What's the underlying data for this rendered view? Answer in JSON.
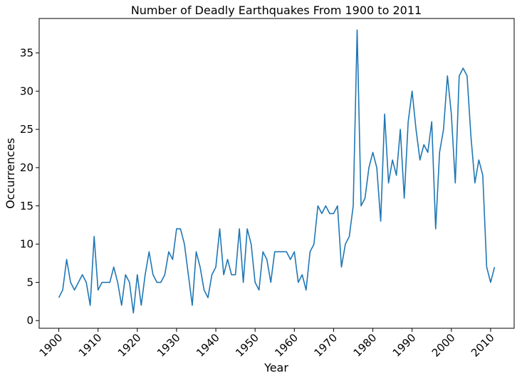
{
  "chart_data": {
    "type": "line",
    "title": "Number of Deadly Earthquakes From 1900 to 2011",
    "xlabel": "Year",
    "ylabel": "Occurrences",
    "xlim": [
      1895,
      2016
    ],
    "ylim": [
      -1,
      39.5
    ],
    "x_ticks": [
      1900,
      1910,
      1920,
      1930,
      1940,
      1950,
      1960,
      1970,
      1980,
      1990,
      2000,
      2010
    ],
    "y_ticks": [
      0,
      5,
      10,
      15,
      20,
      25,
      30,
      35
    ],
    "grid": false,
    "color": "#1f77b4",
    "x": [
      1900,
      1901,
      1902,
      1903,
      1904,
      1905,
      1906,
      1907,
      1908,
      1909,
      1910,
      1911,
      1912,
      1913,
      1914,
      1915,
      1916,
      1917,
      1918,
      1919,
      1920,
      1921,
      1922,
      1923,
      1924,
      1925,
      1926,
      1927,
      1928,
      1929,
      1930,
      1931,
      1932,
      1933,
      1934,
      1935,
      1936,
      1937,
      1938,
      1939,
      1940,
      1941,
      1942,
      1943,
      1944,
      1945,
      1946,
      1947,
      1948,
      1949,
      1950,
      1951,
      1952,
      1953,
      1954,
      1955,
      1956,
      1957,
      1958,
      1959,
      1960,
      1961,
      1962,
      1963,
      1964,
      1965,
      1966,
      1967,
      1968,
      1969,
      1970,
      1971,
      1972,
      1973,
      1974,
      1975,
      1976,
      1977,
      1978,
      1979,
      1980,
      1981,
      1982,
      1983,
      1984,
      1985,
      1986,
      1987,
      1988,
      1989,
      1990,
      1991,
      1992,
      1993,
      1994,
      1995,
      1996,
      1997,
      1998,
      1999,
      2000,
      2001,
      2002,
      2003,
      2004,
      2005,
      2006,
      2007,
      2008,
      2009,
      2010,
      2011
    ],
    "y": [
      3,
      4,
      8,
      5,
      4,
      5,
      6,
      5,
      2,
      11,
      4,
      5,
      5,
      5,
      7,
      5,
      2,
      6,
      5,
      1,
      6,
      2,
      6,
      9,
      6,
      5,
      5,
      6,
      9,
      8,
      12,
      12,
      10,
      6,
      2,
      9,
      7,
      4,
      3,
      6,
      7,
      12,
      6,
      8,
      6,
      6,
      12,
      5,
      12,
      10,
      5,
      4,
      9,
      8,
      5,
      9,
      9,
      9,
      9,
      8,
      9,
      5,
      6,
      4,
      9,
      10,
      15,
      14,
      15,
      14,
      14,
      15,
      7,
      10,
      11,
      15,
      38,
      15,
      16,
      20,
      22,
      20,
      13,
      27,
      18,
      21,
      19,
      25,
      16,
      26,
      30,
      25,
      21,
      23,
      22,
      26,
      12,
      22,
      25,
      32,
      27,
      18,
      32,
      33,
      32,
      24,
      18,
      21,
      19,
      7,
      5,
      7
    ]
  }
}
